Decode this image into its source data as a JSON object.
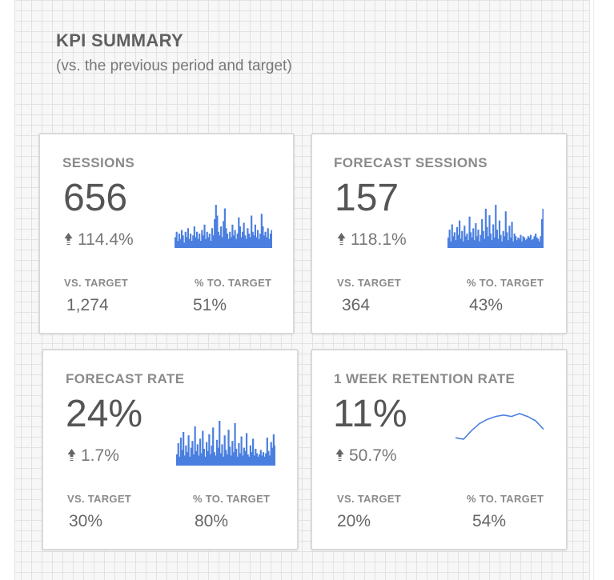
{
  "header": {
    "title": "KPI SUMMARY",
    "subtitle": "(vs. the previous period and target)"
  },
  "colors": {
    "sparkline": "#4a7fe0",
    "arrow": "#666666"
  },
  "cards": [
    {
      "label": "SESSIONS",
      "value": "656",
      "change": "114.4%",
      "change_icon": "up-arrow-icon",
      "target_label": "VS. TARGET",
      "target_value": "1,274",
      "pct_label": "% TO. TARGET",
      "pct_value": "51%",
      "spark_type": "bar",
      "spark": [
        6,
        9,
        4,
        8,
        5,
        10,
        7,
        3,
        9,
        6,
        11,
        5,
        8,
        4,
        7,
        12,
        6,
        9,
        5,
        8,
        4,
        10,
        7,
        13,
        5,
        9,
        6,
        8,
        4,
        11,
        7,
        16,
        24,
        18,
        9,
        7,
        12,
        6,
        15,
        22,
        11,
        8,
        5,
        9,
        6,
        13,
        7,
        10,
        5,
        8,
        17,
        12,
        6,
        9,
        14,
        7,
        5,
        11,
        8,
        6,
        18,
        9,
        7,
        13,
        6,
        10,
        5,
        8,
        19,
        12,
        7,
        9,
        6,
        11,
        5,
        8,
        10
      ]
    },
    {
      "label": "FORECAST SESSIONS",
      "value": "157",
      "change": "118.1%",
      "change_icon": "up-arrow-icon",
      "target_label": "VS. TARGET",
      "target_value": "364",
      "pct_label": "% TO. TARGET",
      "pct_value": "43%",
      "spark_type": "bar",
      "spark": [
        8,
        14,
        5,
        18,
        9,
        12,
        6,
        16,
        10,
        21,
        7,
        13,
        5,
        17,
        9,
        11,
        6,
        24,
        12,
        8,
        15,
        6,
        19,
        9,
        14,
        5,
        10,
        22,
        13,
        7,
        30,
        16,
        9,
        25,
        11,
        6,
        18,
        8,
        33,
        14,
        7,
        21,
        10,
        5,
        13,
        9,
        28,
        12,
        6,
        17,
        8,
        20,
        5,
        11,
        9,
        6,
        8,
        7,
        10,
        5,
        9,
        8,
        6,
        7,
        9,
        8,
        10,
        6,
        7,
        9,
        11,
        8,
        7,
        5,
        9,
        22,
        30
      ]
    },
    {
      "label": "FORECAST RATE",
      "value": "24%",
      "change": "1.7%",
      "change_icon": "up-arrow-icon",
      "target_label": "VS. TARGET",
      "target_value": "30%",
      "pct_label": "% TO. TARGET",
      "pct_value": "80%",
      "spark_type": "bar",
      "spark": [
        10,
        20,
        8,
        25,
        14,
        30,
        9,
        18,
        12,
        27,
        8,
        16,
        22,
        10,
        35,
        13,
        19,
        9,
        24,
        11,
        31,
        15,
        8,
        21,
        13,
        28,
        10,
        18,
        34,
        12,
        9,
        23,
        16,
        40,
        11,
        19,
        8,
        27,
        14,
        10,
        32,
        17,
        9,
        22,
        12,
        38,
        15,
        8,
        20,
        11,
        26,
        9,
        16,
        13,
        29,
        10,
        8,
        18,
        12,
        24,
        9,
        15,
        11,
        8,
        10,
        14,
        9,
        12,
        8,
        11,
        25,
        13,
        9,
        21,
        16,
        28,
        18
      ]
    },
    {
      "label": "1 WEEK RETENTION RATE",
      "value": "11%",
      "change": "50.7%",
      "change_icon": "up-arrow-icon",
      "target_label": "VS. TARGET",
      "target_value": "20%",
      "pct_label": "% TO. TARGET",
      "pct_value": "54%",
      "spark_type": "line",
      "spark": [
        5,
        4,
        10,
        15,
        18,
        20,
        21,
        20,
        22,
        20,
        17,
        11
      ]
    }
  ]
}
